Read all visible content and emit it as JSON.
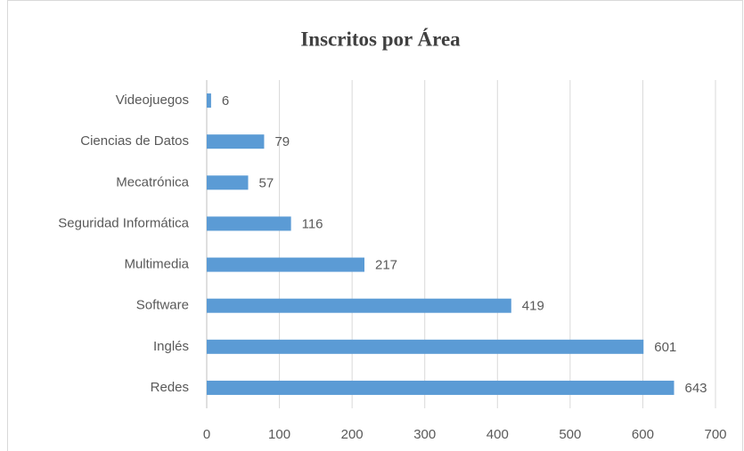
{
  "chart_data": {
    "type": "barh",
    "title": "Inscritos por Área",
    "categories": [
      "Videojuegos",
      "Ciencias de Datos",
      "Mecatrónica",
      "Seguridad Informática",
      "Multimedia",
      "Software",
      "Inglés",
      "Redes"
    ],
    "values": [
      6,
      79,
      57,
      116,
      217,
      419,
      601,
      643
    ],
    "color": "#5b9bd5",
    "xlim": [
      0,
      700
    ],
    "xticks": [
      0,
      100,
      200,
      300,
      400,
      500,
      600,
      700
    ],
    "grid": true
  }
}
